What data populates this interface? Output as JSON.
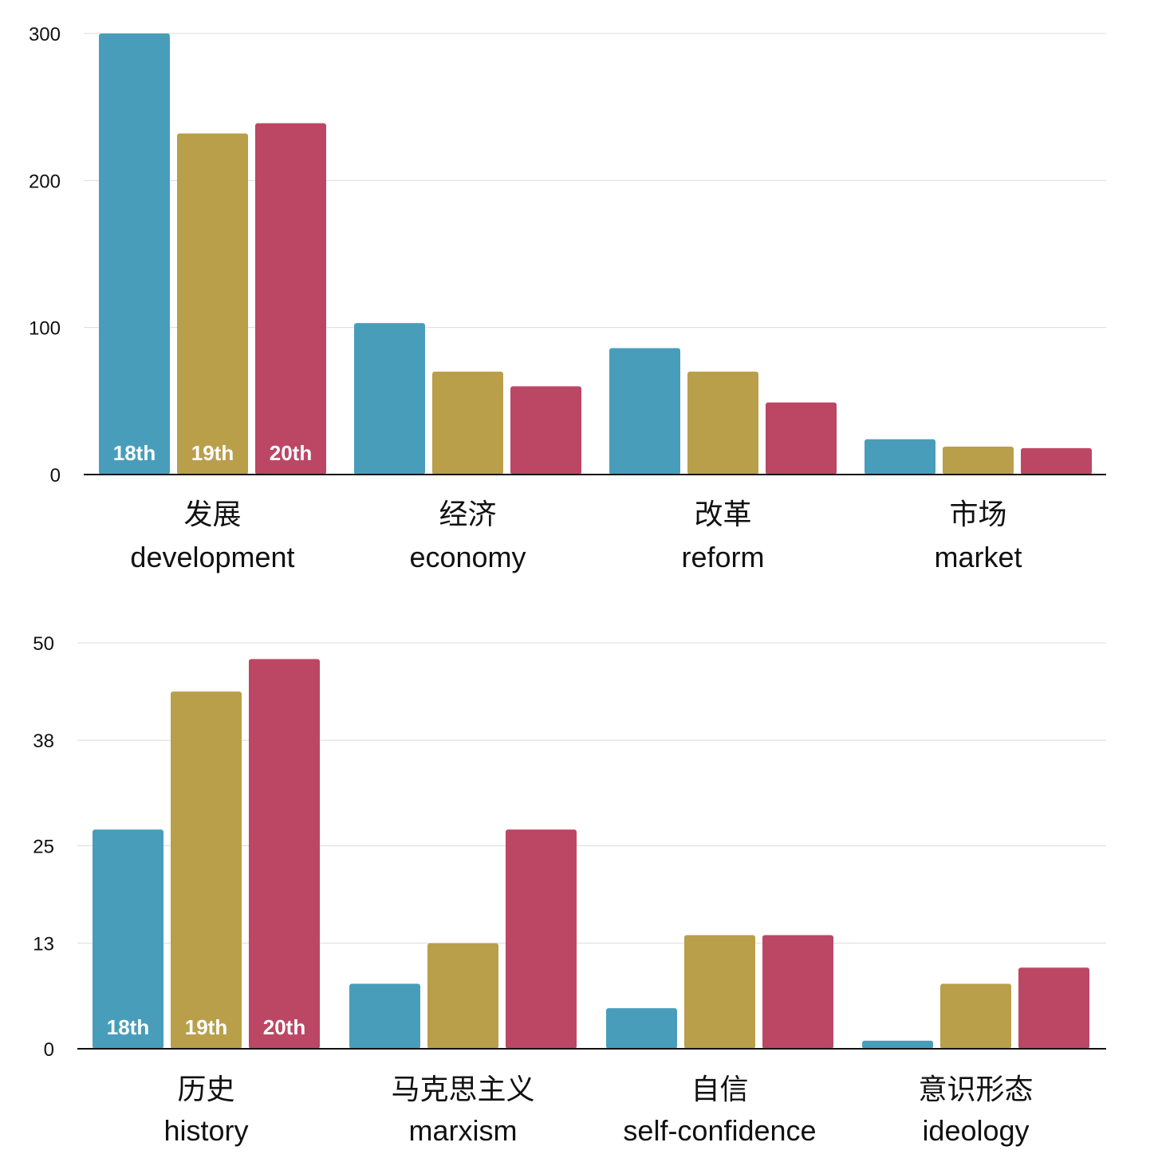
{
  "colors": {
    "18th": "#489eba",
    "19th": "#b99f4a",
    "20th": "#bb4765"
  },
  "chart_data": [
    {
      "type": "bar",
      "title": "",
      "xlabel": "",
      "ylabel": "",
      "ylim": [
        0,
        300
      ],
      "yticks": [
        "0",
        "100",
        "200",
        "300"
      ],
      "grid": true,
      "legend": "in-bar labels on first category",
      "categories": [
        {
          "cn": "发展",
          "en": "development"
        },
        {
          "cn": "经济",
          "en": "economy"
        },
        {
          "cn": "改革",
          "en": "reform"
        },
        {
          "cn": "市场",
          "en": "market"
        }
      ],
      "series": [
        {
          "name": "18th",
          "values": [
            300,
            103,
            86,
            24
          ]
        },
        {
          "name": "19th",
          "values": [
            232,
            70,
            70,
            19
          ]
        },
        {
          "name": "20th",
          "values": [
            239,
            60,
            49,
            18
          ]
        }
      ]
    },
    {
      "type": "bar",
      "title": "",
      "xlabel": "",
      "ylabel": "",
      "ylim": [
        0,
        50
      ],
      "yticks": [
        "0",
        "13",
        "25",
        "38",
        "50"
      ],
      "grid": true,
      "legend": "in-bar labels on first category",
      "categories": [
        {
          "cn": "历史",
          "en": "history"
        },
        {
          "cn": "马克思主义",
          "en": "marxism"
        },
        {
          "cn": "自信",
          "en": "self-confidence"
        },
        {
          "cn": "意识形态",
          "en": "ideology"
        }
      ],
      "series": [
        {
          "name": "18th",
          "values": [
            27,
            8,
            5,
            1
          ]
        },
        {
          "name": "19th",
          "values": [
            44,
            13,
            14,
            8
          ]
        },
        {
          "name": "20th",
          "values": [
            48,
            27,
            14,
            10
          ]
        }
      ]
    }
  ]
}
